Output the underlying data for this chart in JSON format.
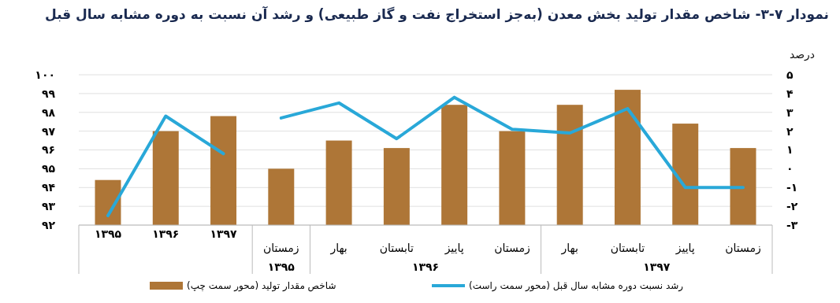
{
  "chart_data": {
    "type": "bar",
    "title": "نمودار ۷-۳- شاخص مقدار تولید بخش معدن (به‌جز استخراج نفت و گاز طبیعی) و رشد آن نسبت به دوره مشابه سال قبل",
    "y2label": "درصد",
    "categories": [
      "۱۳۹۵",
      "۱۳۹۶",
      "۱۳۹۷",
      "زمستان",
      "بهار",
      "تابستان",
      "پاییز",
      "زمستان",
      "بهار",
      "تابستان",
      "پاییز",
      "زمستان"
    ],
    "annotations": [
      "۱۳۹۵",
      "۱۳۹۶",
      "۱۳۹۷"
    ],
    "series": [
      {
        "name": "شاخص مقدار تولید (محور سمت چپ)",
        "color": "#ae7637",
        "values": [
          94.4,
          97.0,
          97.8,
          95.0,
          96.5,
          96.1,
          98.4,
          97.0,
          98.4,
          99.2,
          97.4,
          96.1
        ]
      },
      {
        "name": "رشد نسبت دوره مشابه سال قبل (محور سمت راست)",
        "type": "line",
        "axis": "y2",
        "color": "#29a8d8",
        "values": [
          -2.5,
          2.8,
          0.8,
          null,
          null,
          null,
          null,
          null,
          null,
          null,
          null,
          null
        ]
      },
      {
        "type": "line",
        "axis": "y2",
        "color": "#29a8d8",
        "values": [
          null,
          null,
          null,
          2.7,
          3.5,
          1.6,
          3.8,
          2.1,
          1.9,
          3.2,
          -1.0,
          -1.0
        ]
      }
    ],
    "ylim": [
      92,
      100
    ],
    "yticks": [
      {
        "value": 92,
        "label": "۹۲"
      },
      {
        "value": 93,
        "label": "۹۳"
      },
      {
        "value": 94,
        "label": "۹۴"
      },
      {
        "value": 95,
        "label": "۹۵"
      },
      {
        "value": 96,
        "label": "۹۶"
      },
      {
        "value": 97,
        "label": "۹۷"
      },
      {
        "value": 98,
        "label": "۹۸"
      },
      {
        "value": 99,
        "label": "۹۹"
      },
      {
        "value": 100,
        "label": "۱۰۰"
      }
    ],
    "y2lim": [
      -3,
      5
    ],
    "y2ticks": [
      {
        "value": -3,
        "label": "-۳"
      },
      {
        "value": -2,
        "label": "-۲"
      },
      {
        "value": -1,
        "label": "-۱"
      },
      {
        "value": 0,
        "label": "۰"
      },
      {
        "value": 1,
        "label": "۱"
      },
      {
        "value": 2,
        "label": "۲"
      },
      {
        "value": 3,
        "label": "۳"
      },
      {
        "value": 4,
        "label": "۴"
      },
      {
        "value": 5,
        "label": "۵"
      }
    ],
    "grid": "y",
    "legend": "bottom"
  }
}
